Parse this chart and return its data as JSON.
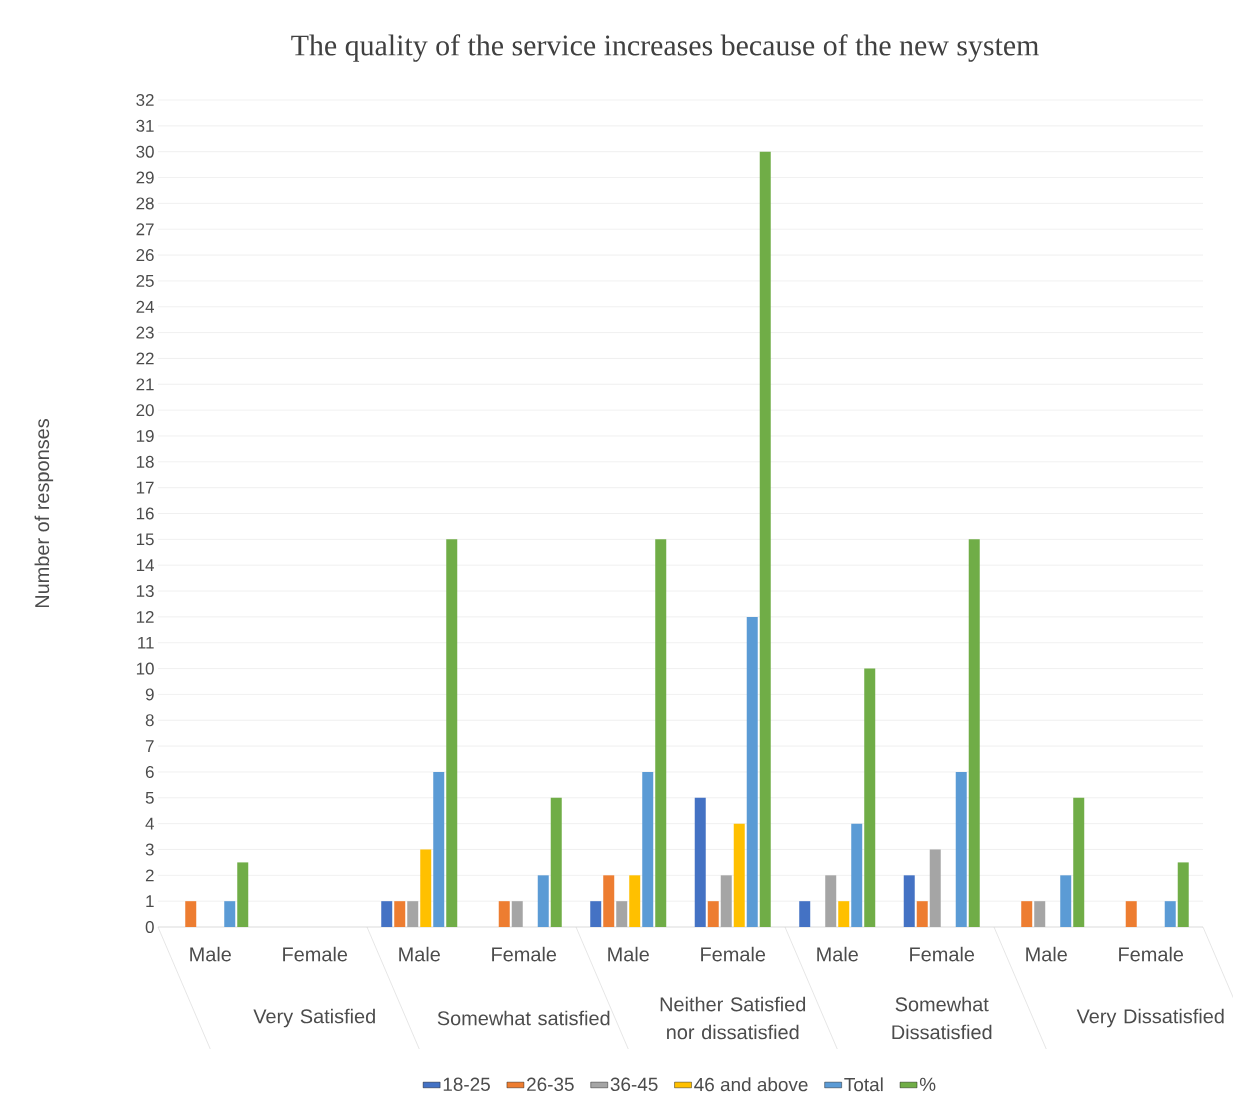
{
  "chart_data": {
    "type": "bar",
    "title": "The quality of the service increases because of the new system",
    "ylabel": "Number of responses",
    "categories": [
      "Male",
      "Female",
      "Male",
      "Female",
      "Male",
      "Female",
      "Male",
      "Female",
      "Male",
      "Female"
    ],
    "annotations": [
      "Very Satisfied",
      "Somewhat satisfied",
      "Neither Satisfied nor dissatisfied",
      "Somewhat Dissatisfied",
      "Very Dissatisfied"
    ],
    "series": [
      {
        "name": "18-25",
        "color": "#4472c4",
        "values": [
          0,
          0,
          1,
          0,
          1,
          5,
          1,
          2,
          0,
          0
        ]
      },
      {
        "name": "26-35",
        "color": "#ed7d31",
        "values": [
          1,
          0,
          1,
          1,
          2,
          1,
          0,
          1,
          1,
          1
        ]
      },
      {
        "name": "36-45",
        "color": "#a5a5a5",
        "values": [
          0,
          0,
          1,
          1,
          1,
          2,
          2,
          3,
          1,
          0
        ]
      },
      {
        "name": "46 and above",
        "color": "#ffc000",
        "values": [
          0,
          0,
          3,
          0,
          2,
          4,
          1,
          0,
          0,
          0
        ]
      },
      {
        "name": "Total",
        "color": "#5b9bd5",
        "values": [
          1,
          0,
          6,
          2,
          6,
          12,
          4,
          6,
          2,
          1
        ]
      },
      {
        "name": "%",
        "color": "#70ad47",
        "values": [
          2.5,
          0,
          15,
          5,
          15,
          30,
          10,
          15,
          5,
          2.5
        ]
      }
    ],
    "ylim": [
      0,
      32
    ],
    "yticks": [
      0,
      1,
      2,
      3,
      4,
      5,
      6,
      7,
      8,
      9,
      10,
      11,
      12,
      13,
      14,
      15,
      16,
      17,
      18,
      19,
      20,
      21,
      22,
      23,
      24,
      25,
      26,
      27,
      28,
      29,
      30,
      31,
      32
    ],
    "grid": "y",
    "legend": "bottom"
  }
}
